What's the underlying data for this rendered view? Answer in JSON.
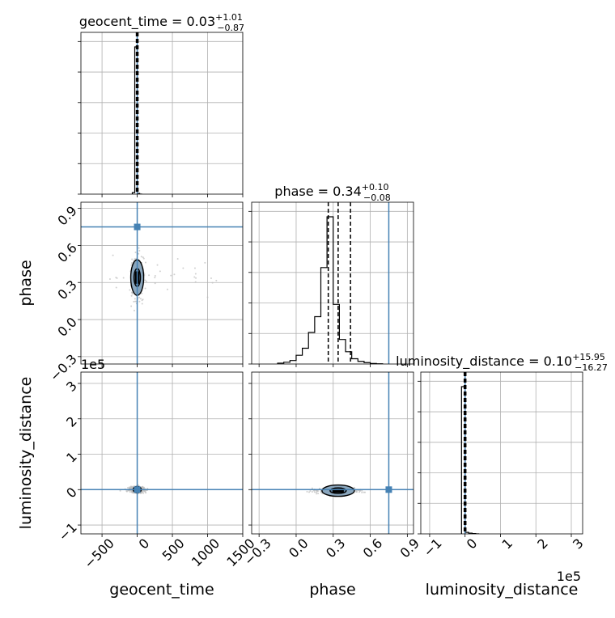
{
  "colors": {
    "truth": "#4682b4",
    "hist": "#000000",
    "grid": "#b0b0b0",
    "scatter": "#bcbcbc",
    "contour_fill": "#8aa6bd"
  },
  "chart_data": {
    "type": "corner",
    "parameters": [
      "geocent_time",
      "phase",
      "luminosity_distance"
    ],
    "axis_labels": {
      "geocent_time": "geocent_time",
      "phase": "phase",
      "luminosity_distance": "luminosity_distance"
    },
    "titles": {
      "geocent_time": {
        "prefix": "geocent_time = 0.03",
        "sup": "+1.01",
        "sub": "−0.87"
      },
      "phase": {
        "prefix": "phase = 0.34",
        "sup": "+0.10",
        "sub": "−0.08"
      },
      "luminosity_distance": {
        "prefix": "luminosity_distance = 0.10",
        "sup": "+15.95",
        "sub": "−16.27"
      }
    },
    "ranges": {
      "geocent_time": [
        -800,
        1500
      ],
      "phase": [
        -0.36,
        0.95
      ],
      "luminosity_distance": [
        -125000,
        332000
      ]
    },
    "ticks": {
      "geocent_time": {
        "values": [
          -500,
          0,
          500,
          1000,
          1500
        ],
        "labels": [
          "−500",
          "0",
          "500",
          "1000",
          "1500"
        ]
      },
      "phase": {
        "values": [
          -0.3,
          0.0,
          0.3,
          0.6,
          0.9
        ],
        "labels": [
          "−0.3",
          "0.0",
          "0.3",
          "0.6",
          "0.9"
        ]
      },
      "luminosity_distance": {
        "values": [
          -100000,
          0,
          100000,
          200000,
          300000
        ],
        "labels": [
          "−1",
          "0",
          "1",
          "2",
          "3"
        ]
      }
    },
    "offset_text": "1e5",
    "truths": {
      "geocent_time": 0,
      "phase": 0.75,
      "luminosity_distance": 0
    },
    "quantiles": {
      "geocent_time": [
        -0.84,
        0.03,
        1.04
      ],
      "phase": [
        0.26,
        0.34,
        0.44
      ],
      "luminosity_distance": [
        -16.17,
        0.1,
        16.05
      ]
    },
    "histograms": {
      "geocent_time": {
        "bin_edges": [
          -70,
          -35,
          0,
          35,
          70
        ],
        "counts": [
          0.01,
          0.98,
          0.005,
          0
        ]
      },
      "phase": {
        "bin_edges": [
          -0.15,
          -0.1,
          -0.05,
          0.0,
          0.05,
          0.1,
          0.15,
          0.2,
          0.25,
          0.3,
          0.35,
          0.4,
          0.45,
          0.5,
          0.55,
          0.6,
          0.65,
          0.7
        ],
        "counts": [
          0.005,
          0.01,
          0.02,
          0.05,
          0.09,
          0.18,
          0.27,
          0.55,
          0.84,
          0.34,
          0.14,
          0.07,
          0.03,
          0.015,
          0.008,
          0.003,
          0.001
        ]
      },
      "luminosity_distance": {
        "bin_edges": [
          -10000,
          0,
          10000,
          20000,
          30000,
          40000
        ],
        "counts": [
          0.98,
          0.01,
          0.005,
          0.002,
          0.0
        ]
      }
    },
    "scatter_centers": {
      "geocent_time,phase": {
        "x": 0,
        "y": 0.34,
        "sx": 40,
        "sy": 0.08,
        "wide_x": [
          -400,
          1150
        ]
      },
      "geocent_time,luminosity_distance": {
        "x": 0,
        "y": 0,
        "sx": 60,
        "sy": 4000
      },
      "phase,luminosity_distance": {
        "x": 0.34,
        "y": -3000,
        "sx": 0.08,
        "sy": 4000
      }
    },
    "grid": true
  }
}
